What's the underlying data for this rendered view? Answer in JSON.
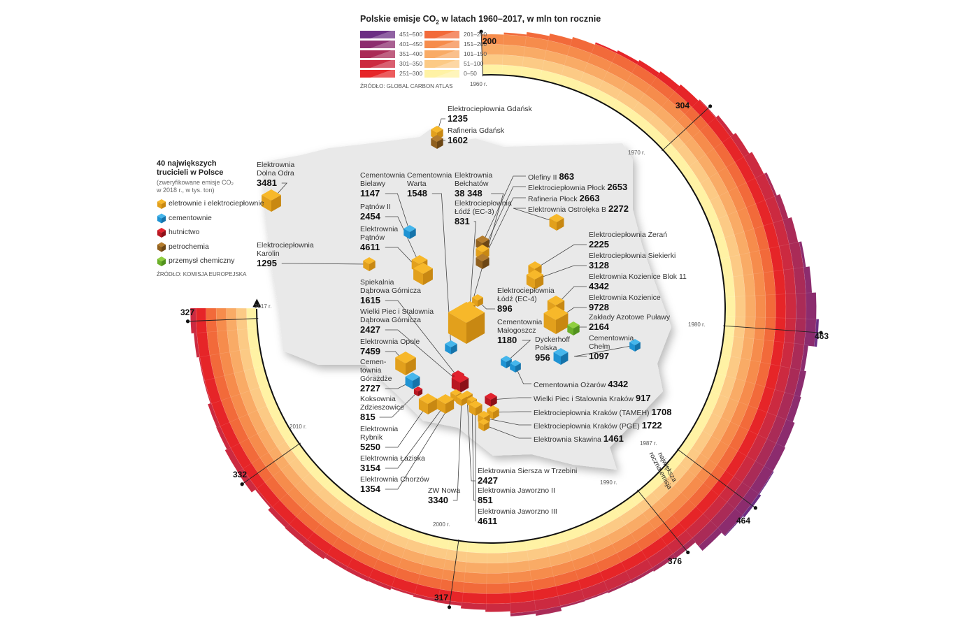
{
  "header": {
    "title_pre": "Polskie emisje CO",
    "title_sub": "2",
    "title_post": "  w latach 1960–2017, w mln ton rocznie",
    "source": "ŹRÓDŁO: GLOBAL CARBON ATLAS"
  },
  "emission_legend": [
    {
      "label": "451–500",
      "color": "#6b2e84"
    },
    {
      "label": "401–450",
      "color": "#8c2c6e"
    },
    {
      "label": "351–400",
      "color": "#aa2b57"
    },
    {
      "label": "301–350",
      "color": "#cc2a40"
    },
    {
      "label": "251–300",
      "color": "#e62528"
    },
    {
      "label": "201–250",
      "color": "#f26a3a"
    },
    {
      "label": "151–200",
      "color": "#f68c4c"
    },
    {
      "label": "101–150",
      "color": "#f9ab66"
    },
    {
      "label": "51–100",
      "color": "#fcca85"
    },
    {
      "label": "0–50",
      "color": "#fff2a4"
    }
  ],
  "chart_data": {
    "type": "bar",
    "title": "Polskie emisje CO2 w latach 1960–2017, w mln ton rocznie",
    "layout": "radial stacked bands (50 Mt per band)",
    "x": [
      1960,
      1961,
      1962,
      1963,
      1964,
      1965,
      1966,
      1967,
      1968,
      1969,
      1970,
      1971,
      1972,
      1973,
      1974,
      1975,
      1976,
      1977,
      1978,
      1979,
      1980,
      1981,
      1982,
      1983,
      1984,
      1985,
      1986,
      1987,
      1988,
      1989,
      1990,
      1991,
      1992,
      1993,
      1994,
      1995,
      1996,
      1997,
      1998,
      1999,
      2000,
      2001,
      2002,
      2003,
      2004,
      2005,
      2006,
      2007,
      2008,
      2009,
      2010,
      2011,
      2012,
      2013,
      2014,
      2015,
      2016,
      2017
    ],
    "values": [
      200,
      210,
      222,
      234,
      246,
      258,
      266,
      275,
      285,
      295,
      304,
      318,
      332,
      347,
      362,
      378,
      395,
      412,
      430,
      450,
      463,
      420,
      430,
      435,
      445,
      450,
      455,
      464,
      455,
      430,
      376,
      370,
      365,
      362,
      358,
      360,
      375,
      365,
      340,
      330,
      317,
      315,
      310,
      318,
      320,
      320,
      330,
      328,
      325,
      310,
      332,
      330,
      320,
      318,
      305,
      305,
      315,
      327
    ],
    "ylim": [
      0,
      500
    ],
    "band_size": 50,
    "year_labels": [
      "1960 r.",
      "1970 r.",
      "1980 r.",
      "1987 r.",
      "1990 r.",
      "2000 r.",
      "2010 r.",
      "2017 r."
    ],
    "annotations": [
      {
        "year": 1960,
        "value": "200"
      },
      {
        "year": 1970,
        "value": "304"
      },
      {
        "year": 1980,
        "value": "463"
      },
      {
        "year": 1987,
        "value": "464"
      },
      {
        "year": 1990,
        "value": "376"
      },
      {
        "year": 2000,
        "value": "317"
      },
      {
        "year": 2010,
        "value": "332"
      },
      {
        "year": 2017,
        "value": "327"
      }
    ],
    "max_label": "największa\nroczna emisja"
  },
  "plants_legend": {
    "title": "40 największych\ntrucicieli w Polsce",
    "subtitle": "(zweryfikowane emisje CO₂\nw 2018 r., w tys. ton)",
    "categories": [
      {
        "label": "eletrownie i elektrociepłownie",
        "type": "energy"
      },
      {
        "label": "cementownie",
        "type": "cement"
      },
      {
        "label": "hutnictwo",
        "type": "steel"
      },
      {
        "label": "petrochemia",
        "type": "petro"
      },
      {
        "label": "przemysł chemiczny",
        "type": "chem"
      }
    ],
    "source": "ŹRÓDŁO: KOMISJA EUROPEJSKA"
  },
  "category_colors": {
    "energy": [
      "#f7b82a",
      "#e2a01c",
      "#c88812"
    ],
    "cement": [
      "#45b6ec",
      "#1f93d3",
      "#1573aa"
    ],
    "steel": [
      "#e2222e",
      "#b91822",
      "#8c1018"
    ],
    "petro": [
      "#b47c2c",
      "#90601e",
      "#6c4614"
    ],
    "chem": [
      "#90cf40",
      "#6cb02a",
      "#52921e"
    ]
  },
  "plants": [
    {
      "name": "Elektrociepłownia Gdańsk",
      "value": "1235",
      "type": "energy"
    },
    {
      "name": "Rafineria Gdańsk",
      "value": "1602",
      "type": "petro"
    },
    {
      "name": "Elektrownia\nDolna Odra",
      "value": "3481",
      "type": "energy"
    },
    {
      "name": "Elektrociepłownia\nKarolin",
      "value": "1295",
      "type": "energy"
    },
    {
      "name": "Cementownia\nBielawy",
      "value": "1147",
      "type": "cement"
    },
    {
      "name": "Cementownia\nWarta",
      "value": "1548",
      "type": "cement"
    },
    {
      "name": "Elektrownia\nBełchatów",
      "value": "38 348",
      "type": "energy"
    },
    {
      "name": "Pątnów II",
      "value": "2454",
      "type": "energy"
    },
    {
      "name": "Elektrownia\nPątnów",
      "value": "4611",
      "type": "energy"
    },
    {
      "name": "Elektrociepłownia\nŁódź (EC-3)",
      "value": "831",
      "type": "energy"
    },
    {
      "name": "Olefiny II",
      "value": "863",
      "type": "petro"
    },
    {
      "name": "Elektrociepłownia Płock",
      "value": "2653",
      "type": "energy"
    },
    {
      "name": "Rafineria Płock",
      "value": "2663",
      "type": "petro"
    },
    {
      "name": "Elektrownia Ostrołęka B",
      "value": "2272",
      "type": "energy"
    },
    {
      "name": "Elektrociepłownia Żerań",
      "value": "2225",
      "type": "energy"
    },
    {
      "name": "Elektrociepłownia Siekierki",
      "value": "3128",
      "type": "energy"
    },
    {
      "name": "Elektrownia Kozienice Blok 11",
      "value": "4342",
      "type": "energy"
    },
    {
      "name": "Elektrownia Kozienice",
      "value": "9728",
      "type": "energy"
    },
    {
      "name": "Zakłady Azotowe Puławy",
      "value": "2164",
      "type": "chem"
    },
    {
      "name": "Cementownia\nChełm",
      "value": "1097",
      "type": "cement"
    },
    {
      "name": "Spiekalnia\nDąbrowa Górnicza",
      "value": "1615",
      "type": "steel"
    },
    {
      "name": "Wielki Piec i Stalownia\nDąbrowa Górnicza",
      "value": "2427",
      "type": "steel"
    },
    {
      "name": "Elektrociepłownia\nŁódź (EC-4)",
      "value": "896",
      "type": "energy"
    },
    {
      "name": "Cementownia\nMałogoszcz",
      "value": "1180",
      "type": "cement"
    },
    {
      "name": "Dyckerhoff\nPolska",
      "value": "956",
      "type": "cement"
    },
    {
      "name": "Elektrownia Opole",
      "value": "7459",
      "type": "energy"
    },
    {
      "name": "Cemen-\ntownia\nGórażdże",
      "value": "2727",
      "type": "cement"
    },
    {
      "name": "Koksownia\nZdzieszowice",
      "value": "815",
      "type": "steel"
    },
    {
      "name": "Elektrownia\nRybnik",
      "value": "5250",
      "type": "energy"
    },
    {
      "name": "Elektrownia Łaziska",
      "value": "3154",
      "type": "energy"
    },
    {
      "name": "Elektrownia Chorzów",
      "value": "1354",
      "type": "energy"
    },
    {
      "name": "ZW Nowa",
      "value": "3340",
      "type": "energy"
    },
    {
      "name": "Elektrownia Siersza w Trzebini",
      "value": "2427",
      "type": "energy"
    },
    {
      "name": "Elektrownia  Jaworzno II",
      "value": "851",
      "type": "energy"
    },
    {
      "name": "Elektrownia Jaworzno III",
      "value": "4611",
      "type": "energy"
    },
    {
      "name": "Cementownia Ożarów",
      "value": "4342",
      "type": "cement"
    },
    {
      "name": "Wielki Piec i Stalownia Kraków",
      "value": "917",
      "type": "steel"
    },
    {
      "name": "Elektrociepłownia Kraków (TAMEH)",
      "value": "1708",
      "type": "energy"
    },
    {
      "name": "Elektrociepłownia Kraków (PGE)",
      "value": "1722",
      "type": "energy"
    },
    {
      "name": "Elektrownia Skawina",
      "value": "1461",
      "type": "energy"
    }
  ]
}
